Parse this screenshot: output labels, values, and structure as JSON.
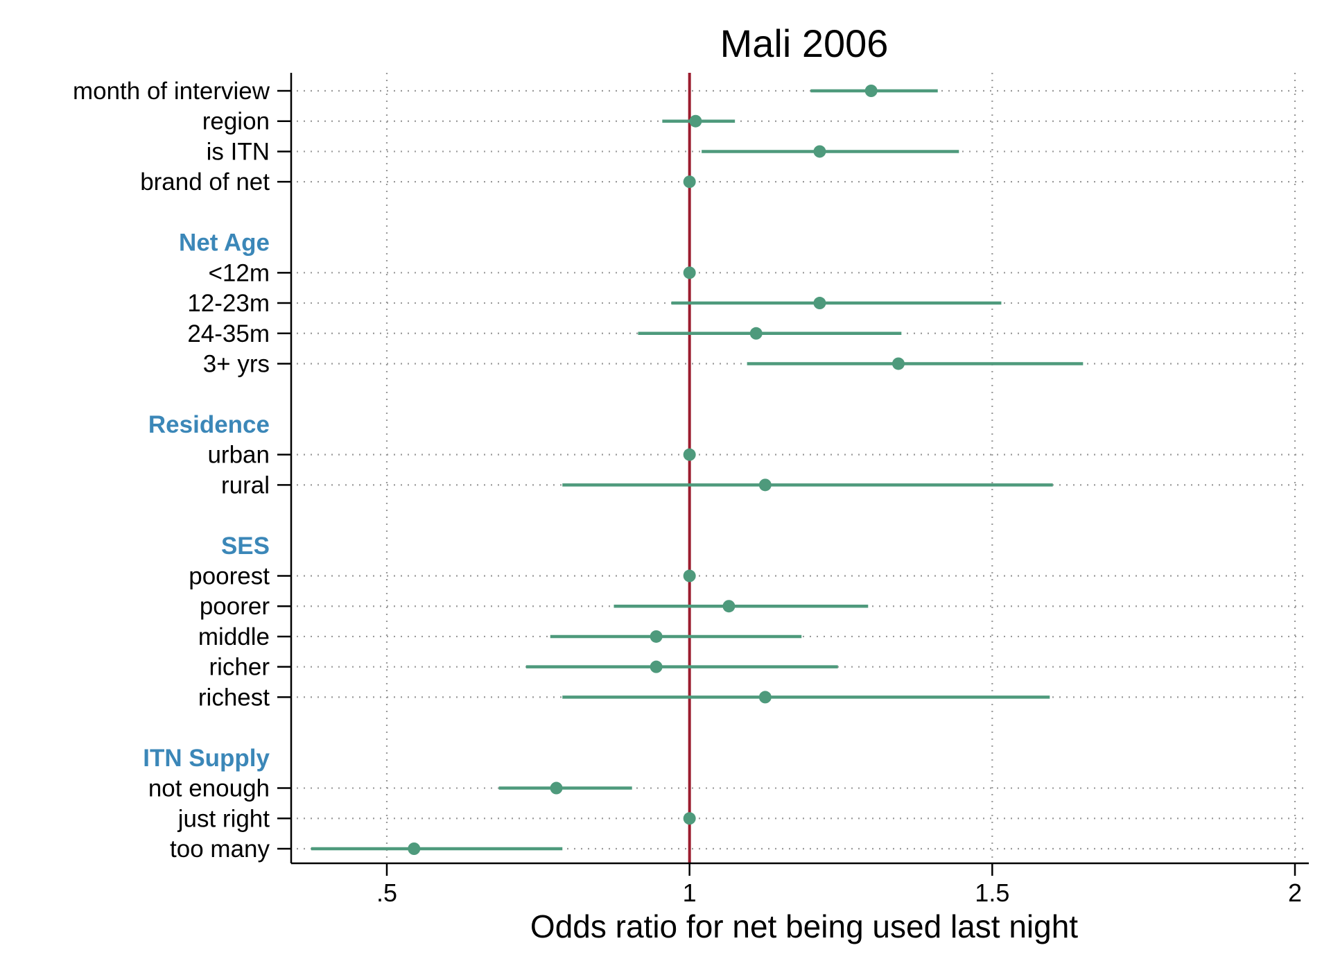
{
  "chart_data": {
    "type": "scatter",
    "title": "Mali 2006",
    "xlabel": "Odds ratio for net being used last night",
    "ylabel": "",
    "xlim": [
      0.35,
      2.0
    ],
    "xticks": [
      0.5,
      1,
      1.5,
      2
    ],
    "xtick_labels": [
      ".5",
      "1",
      "1.5",
      "2"
    ],
    "reference_line": 1,
    "grid": "dotted vertical and horizontal",
    "colors": {
      "point": "#4e9a7c",
      "ci": "#4e9a7c",
      "reference": "#9b1c2e",
      "group_heading": "#3b87b8",
      "grid": "#999999"
    },
    "rows": [
      {
        "label": "month of interview",
        "kind": "item",
        "or": 1.3,
        "lo": 1.2,
        "hi": 1.41
      },
      {
        "label": "region",
        "kind": "item",
        "or": 1.01,
        "lo": 0.955,
        "hi": 1.075
      },
      {
        "label": "is ITN",
        "kind": "item",
        "or": 1.215,
        "lo": 1.02,
        "hi": 1.445
      },
      {
        "label": "brand of net",
        "kind": "item",
        "or": 1.0,
        "lo": null,
        "hi": null
      },
      {
        "label": "",
        "kind": "blank"
      },
      {
        "label": "Net Age",
        "kind": "group"
      },
      {
        "label": "<12m",
        "kind": "item",
        "or": 1.0,
        "lo": null,
        "hi": null
      },
      {
        "label": "12-23m",
        "kind": "item",
        "or": 1.215,
        "lo": 0.97,
        "hi": 1.515
      },
      {
        "label": "24-35m",
        "kind": "item",
        "or": 1.11,
        "lo": 0.915,
        "hi": 1.35
      },
      {
        "label": "3+ yrs",
        "kind": "item",
        "or": 1.345,
        "lo": 1.095,
        "hi": 1.65
      },
      {
        "label": "",
        "kind": "blank"
      },
      {
        "label": "Residence",
        "kind": "group"
      },
      {
        "label": "urban",
        "kind": "item",
        "or": 1.0,
        "lo": null,
        "hi": null
      },
      {
        "label": "rural",
        "kind": "item",
        "or": 1.125,
        "lo": 0.79,
        "hi": 1.6
      },
      {
        "label": "",
        "kind": "blank"
      },
      {
        "label": "SES",
        "kind": "group"
      },
      {
        "label": "poorest",
        "kind": "item",
        "or": 1.0,
        "lo": null,
        "hi": null
      },
      {
        "label": "poorer",
        "kind": "item",
        "or": 1.065,
        "lo": 0.875,
        "hi": 1.295
      },
      {
        "label": "middle",
        "kind": "item",
        "or": 0.945,
        "lo": 0.77,
        "hi": 1.185
      },
      {
        "label": "richer",
        "kind": "item",
        "or": 0.945,
        "lo": 0.73,
        "hi": 1.245
      },
      {
        "label": "richest",
        "kind": "item",
        "or": 1.125,
        "lo": 0.79,
        "hi": 1.595
      },
      {
        "label": "",
        "kind": "blank"
      },
      {
        "label": "ITN Supply",
        "kind": "group"
      },
      {
        "label": "not enough",
        "kind": "item",
        "or": 0.78,
        "lo": 0.685,
        "hi": 0.905
      },
      {
        "label": "just right",
        "kind": "item",
        "or": 1.0,
        "lo": null,
        "hi": null
      },
      {
        "label": "too many",
        "kind": "item",
        "or": 0.545,
        "lo": 0.375,
        "hi": 0.79
      }
    ]
  }
}
